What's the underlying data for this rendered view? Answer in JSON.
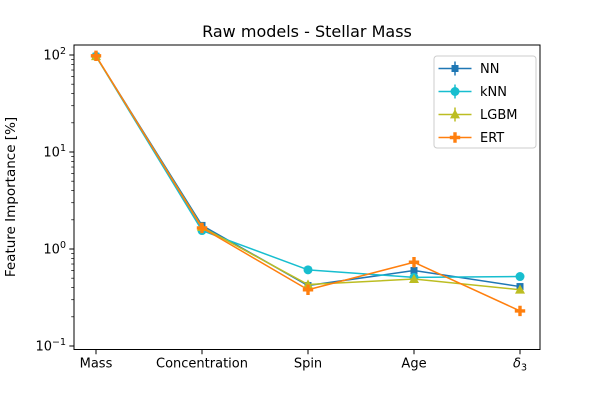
{
  "figure": {
    "background": "#ffffff",
    "spine_color": "#000000",
    "legend_border_color": "#cccccc"
  },
  "chart_data": {
    "type": "line",
    "title": "Raw models - Stellar Mass",
    "xlabel": "",
    "ylabel": "Feature Importance [%]",
    "yscale": "log",
    "ylim": [
      0.092,
      127
    ],
    "grid": false,
    "legend_position": "upper right",
    "categories": [
      "Mass",
      "Concentration",
      "Spin",
      "Age",
      "δ_3"
    ],
    "yticks": [
      100,
      10,
      1,
      0.1
    ],
    "series": [
      {
        "name": "NN",
        "color": "#1f77b4",
        "marker": "square",
        "values": [
          97,
          1.75,
          0.42,
          0.6,
          0.41
        ]
      },
      {
        "name": "kNN",
        "color": "#17becf",
        "marker": "circle",
        "values": [
          97,
          1.55,
          0.61,
          0.51,
          0.52
        ]
      },
      {
        "name": "LGBM",
        "color": "#bcbd22",
        "marker": "triangle",
        "values": [
          97,
          1.68,
          0.43,
          0.49,
          0.38
        ]
      },
      {
        "name": "ERT",
        "color": "#ff7f0e",
        "marker": "plus",
        "values": [
          98,
          1.65,
          0.38,
          0.73,
          0.23
        ]
      }
    ]
  }
}
